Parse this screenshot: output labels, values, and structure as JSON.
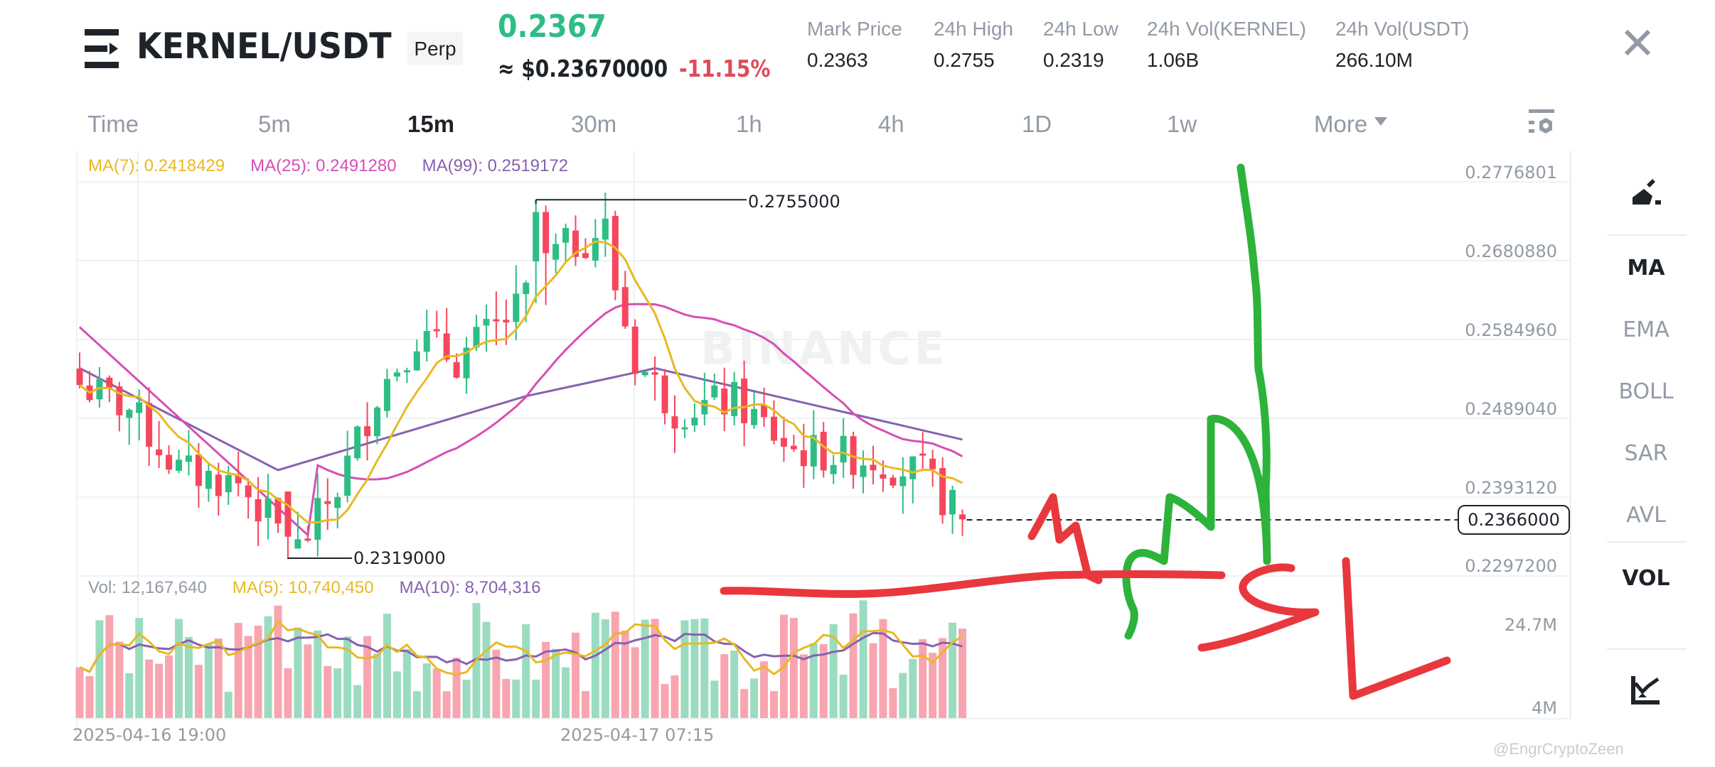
{
  "header": {
    "menu_icon": "drawer-menu-icon",
    "pair": "KERNEL/USDT",
    "contract_type": "Perp",
    "last_price": "0.2367",
    "usd_price": "≈ $0.23670000",
    "change_pct": "-11.15%",
    "stats": [
      {
        "label": "Mark Price",
        "value": "0.2363"
      },
      {
        "label": "24h High",
        "value": "0.2755"
      },
      {
        "label": "24h Low",
        "value": "0.2319"
      },
      {
        "label": "24h Vol(KERNEL)",
        "value": "1.06B"
      },
      {
        "label": "24h Vol(USDT)",
        "value": "266.10M"
      }
    ],
    "close_icon": "close-icon"
  },
  "intervals": {
    "tabs": [
      {
        "label": "Time"
      },
      {
        "label": "5m"
      },
      {
        "label": "15m",
        "active": true
      },
      {
        "label": "30m"
      },
      {
        "label": "1h"
      },
      {
        "label": "4h"
      },
      {
        "label": "1D"
      },
      {
        "label": "1w"
      },
      {
        "label": "More"
      }
    ],
    "settings_icon": "chart-settings-icon"
  },
  "legend": {
    "ma7": "MA(7): 0.2418429",
    "ma25": "MA(25): 0.2491280",
    "ma99": "MA(99): 0.2519172",
    "vol": "Vol: 12,167,640",
    "vol_ma5": "MA(5): 10,740,450",
    "vol_ma10": "MA(10): 8,704,316"
  },
  "colors": {
    "up": "#2ebd85",
    "down": "#f6465d",
    "vol_up": "#9bdcc0",
    "vol_down": "#f8a5b0",
    "ma7": "#e8b923",
    "ma25": "#d64fb5",
    "ma99": "#8661b0",
    "annotation_green": "#2db33a",
    "annotation_red": "#e8383d",
    "grid": "#f0f1f3"
  },
  "price_axis": {
    "labels": [
      "0.2776801",
      "0.2680880",
      "0.2584960",
      "0.2489040",
      "0.2393120",
      "0.2297200"
    ],
    "current_price_tag": "0.2366000"
  },
  "volume_axis": {
    "labels": [
      "24.7M",
      "4M"
    ]
  },
  "time_axis": {
    "labels": [
      "2025-04-16 19:00",
      "2025-04-17 07:15"
    ]
  },
  "markers": {
    "high": "0.2755000",
    "low": "0.2319000"
  },
  "tools": {
    "draw_icon": "drawing-tool-icon",
    "items": [
      {
        "label": "MA",
        "active": true
      },
      {
        "label": "EMA"
      },
      {
        "label": "BOLL"
      },
      {
        "label": "SAR"
      },
      {
        "label": "AVL"
      },
      {
        "label": "VOL",
        "active": true
      }
    ],
    "indicator_icon": "indicator-chart-icon"
  },
  "annotations": {
    "sl_text": "SL"
  },
  "watermarks": {
    "exchange": "BINANCE",
    "author": "@EngrCryptoZeen"
  },
  "chart_data": {
    "type": "candlestick",
    "title": "KERNEL/USDT Perp 15m",
    "interval": "15m",
    "price_range": [
      0.22972,
      0.2776801
    ],
    "y_ticks": [
      0.2776801,
      0.268088,
      0.258496,
      0.248904,
      0.239312,
      0.22972
    ],
    "high_marker": 0.2755,
    "low_marker": 0.2319,
    "last_price": 0.2366,
    "x_ticks": [
      "2025-04-16 19:00",
      "2025-04-17 07:15"
    ],
    "ma": {
      "MA7": 0.2418429,
      "MA25": 0.249128,
      "MA99": 0.2519172
    },
    "volume": {
      "last": 12167640,
      "MA5": 10740450,
      "MA10": 8704316,
      "axis": [
        "24.7M",
        "4M"
      ]
    },
    "candle_count": 90,
    "close_path_keypoints": [
      {
        "i": 0,
        "c": 0.253
      },
      {
        "i": 5,
        "c": 0.25
      },
      {
        "i": 10,
        "c": 0.2425
      },
      {
        "i": 16,
        "c": 0.241
      },
      {
        "i": 21,
        "c": 0.234
      },
      {
        "i": 22,
        "c": 0.233
      },
      {
        "i": 26,
        "c": 0.2405
      },
      {
        "i": 30,
        "c": 0.252
      },
      {
        "i": 34,
        "c": 0.259
      },
      {
        "i": 38,
        "c": 0.256
      },
      {
        "i": 44,
        "c": 0.262
      },
      {
        "i": 48,
        "c": 0.269
      },
      {
        "i": 53,
        "c": 0.272
      },
      {
        "i": 54,
        "c": 0.265
      },
      {
        "i": 56,
        "c": 0.256
      },
      {
        "i": 60,
        "c": 0.25
      },
      {
        "i": 66,
        "c": 0.251
      },
      {
        "i": 72,
        "c": 0.245
      },
      {
        "i": 80,
        "c": 0.244
      },
      {
        "i": 85,
        "c": 0.242
      },
      {
        "i": 89,
        "c": 0.2366
      }
    ]
  }
}
